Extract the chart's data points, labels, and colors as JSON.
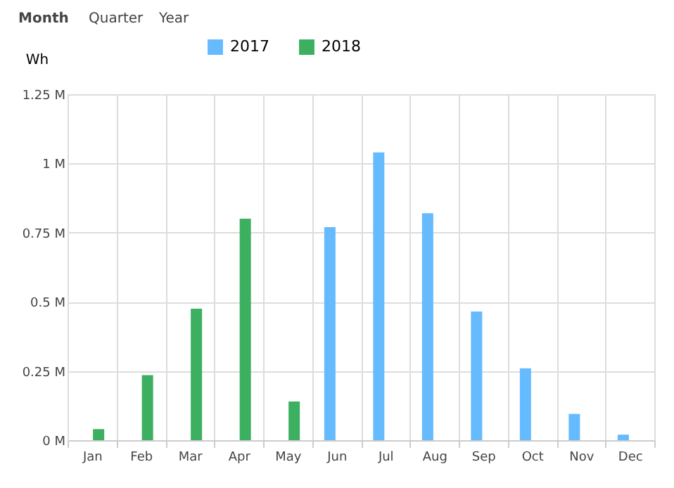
{
  "chart_data": {
    "type": "bar",
    "ylabel": "Wh",
    "annotations": [
      "Month",
      "Quarter",
      "Year"
    ],
    "categories": [
      "Jan",
      "Feb",
      "Mar",
      "Apr",
      "May",
      "Jun",
      "Jul",
      "Aug",
      "Sep",
      "Oct",
      "Nov",
      "Dec"
    ],
    "series": [
      {
        "name": "2017",
        "color": "#66bbff",
        "values": [
          null,
          null,
          null,
          null,
          null,
          770000,
          1040000,
          820000,
          465000,
          260000,
          95000,
          20000
        ]
      },
      {
        "name": "2018",
        "color": "#3cb060",
        "values": [
          40000,
          235000,
          475000,
          800000,
          140000,
          null,
          null,
          null,
          null,
          null,
          null,
          null
        ]
      }
    ],
    "ylim": [
      0,
      1250000
    ],
    "yticks": [
      {
        "value": 0,
        "label": "0 M"
      },
      {
        "value": 250000,
        "label": "0.25 M"
      },
      {
        "value": 500000,
        "label": "0.5 M"
      },
      {
        "value": 750000,
        "label": "0.75 M"
      },
      {
        "value": 1000000,
        "label": "1 M"
      },
      {
        "value": 1250000,
        "label": "1.25 M"
      }
    ],
    "grid": true,
    "legend": "top"
  }
}
